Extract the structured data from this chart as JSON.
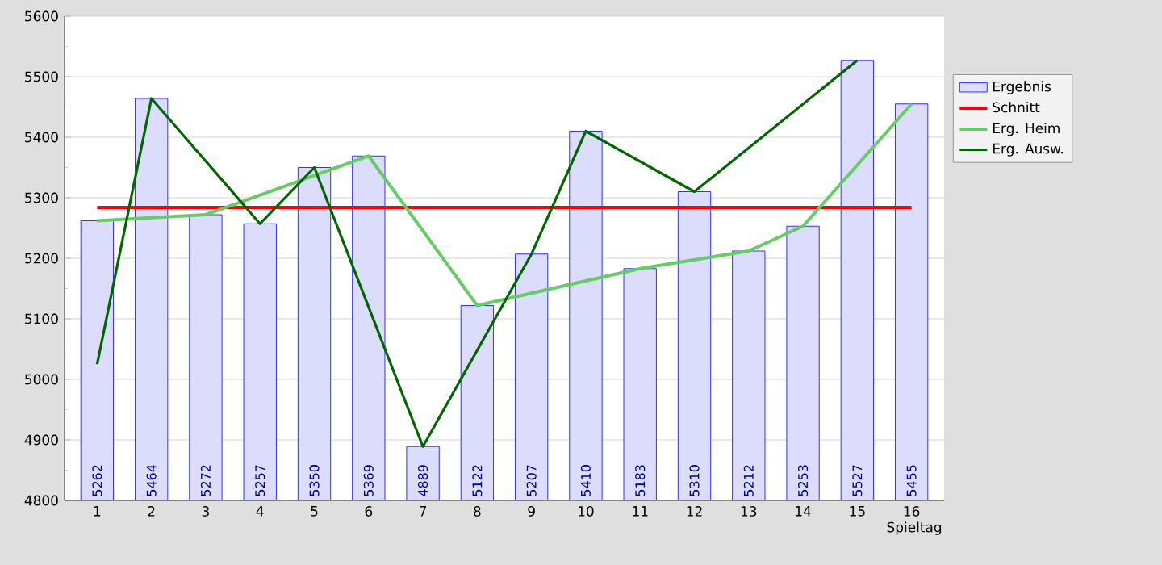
{
  "chart_data": {
    "type": "bar",
    "xlabel": "Spieltag",
    "categories": [
      "1",
      "2",
      "3",
      "4",
      "5",
      "6",
      "7",
      "8",
      "9",
      "10",
      "11",
      "12",
      "13",
      "14",
      "15",
      "16"
    ],
    "series": [
      {
        "name": "Ergebnis",
        "color": "#dcdcfc",
        "values": [
          5262,
          5464,
          5272,
          5257,
          5350,
          5369,
          4889,
          5122,
          5207,
          5410,
          5183,
          5310,
          5212,
          5253,
          5527,
          5455
        ],
        "value_labels": [
          "5262",
          "5464",
          "5272",
          "5257",
          "5350",
          "5369",
          "4889",
          "5122",
          "5207",
          "5410",
          "5183",
          "5310",
          "5212",
          "5253",
          "5527",
          "5455"
        ]
      },
      {
        "name": "Schnitt",
        "type": "line",
        "color": "#ff0000",
        "values": [
          5284,
          5284,
          5284,
          5284,
          5284,
          5284,
          5284,
          5284,
          5284,
          5284,
          5284,
          5284,
          5284,
          5284,
          5284,
          5284
        ]
      },
      {
        "name": "Erg. Heim",
        "type": "line",
        "color": "#66cc66",
        "values": [
          5262,
          null,
          5272,
          null,
          null,
          5369,
          null,
          5122,
          null,
          null,
          5183,
          null,
          5212,
          5253,
          null,
          5455
        ]
      },
      {
        "name": "Erg. Ausw.",
        "type": "line",
        "color": "#006600",
        "values": [
          5025,
          5464,
          null,
          5257,
          5350,
          null,
          4889,
          null,
          5207,
          5410,
          null,
          5310,
          null,
          null,
          5527,
          null
        ]
      }
    ],
    "ylim": [
      4800,
      5600
    ],
    "yticks": [
      4800,
      4900,
      5000,
      5100,
      5200,
      5300,
      5400,
      5500,
      5600
    ],
    "grid": "y",
    "legend": "right"
  }
}
